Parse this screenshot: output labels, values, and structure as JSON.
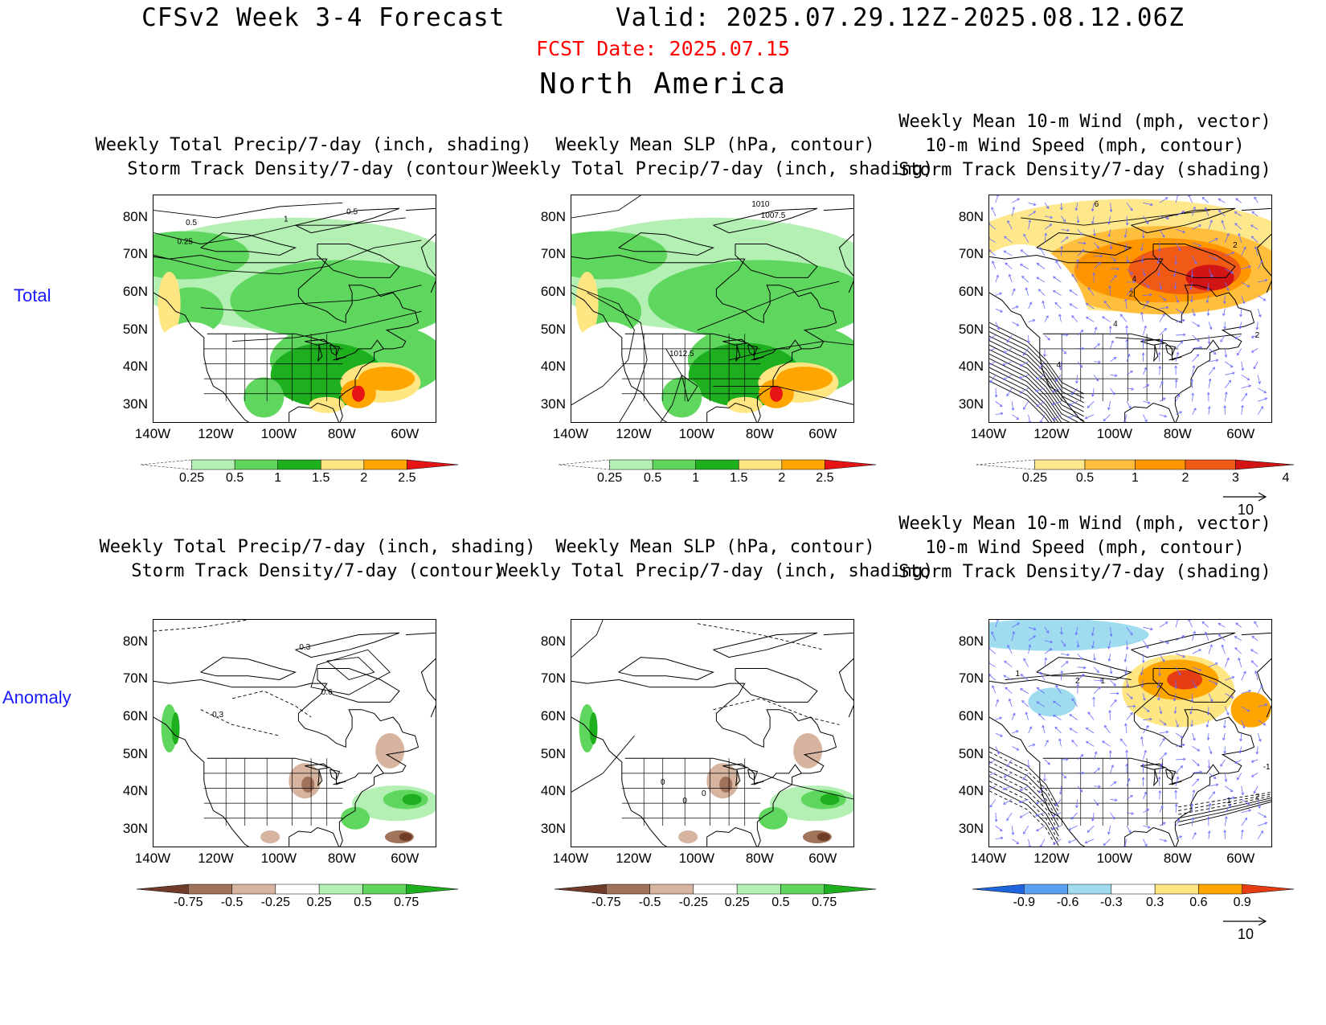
{
  "header": {
    "title": "CFSv2 Week 3-4 Forecast       Valid: 2025.07.29.12Z-2025.08.12.06Z",
    "fcst_date": "FCST Date: 2025.07.15",
    "region": "North America"
  },
  "row_labels": [
    "Total",
    "Anomaly"
  ],
  "panel_titles": {
    "precip_storm": [
      "Weekly Total Precip/7-day (inch, shading)",
      "Storm Track Density/7-day (contour)"
    ],
    "slp_precip": [
      "Weekly Mean SLP (hPa, contour)",
      "Weekly Total Precip/7-day (inch, shading)"
    ],
    "wind_storm": [
      "Weekly Mean 10-m Wind (mph, vector)",
      "10-m Wind Speed (mph, contour)",
      "Storm Track Density/7-day (shading)"
    ]
  },
  "axes": {
    "lat_labels": [
      "80N",
      "70N",
      "60N",
      "50N",
      "40N",
      "30N"
    ],
    "lon_labels": [
      "140W",
      "120W",
      "100W",
      "80W",
      "60W"
    ]
  },
  "colorbars": {
    "precip_total": {
      "ticks": [
        "0.25",
        "0.5",
        "1",
        "1.5",
        "2",
        "2.5"
      ],
      "colors": [
        "#ffffff",
        "#b4f0b4",
        "#5fd75f",
        "#1eaf1e",
        "#ffe682",
        "#ffa500",
        "#e61414"
      ]
    },
    "storm_total": {
      "ticks": [
        "0.25",
        "0.5",
        "1",
        "2",
        "3",
        "4"
      ],
      "colors": [
        "#ffffff",
        "#ffe88c",
        "#ffbe3c",
        "#ff9600",
        "#f05a14",
        "#d21414"
      ]
    },
    "precip_anom": {
      "ticks": [
        "-0.75",
        "-0.5",
        "-0.25",
        "0.25",
        "0.5",
        "0.75"
      ],
      "colors": [
        "#6e3c28",
        "#a0735a",
        "#d7b4a0",
        "#ffffff",
        "#b4f0b4",
        "#5fd75f",
        "#1eaf1e"
      ]
    },
    "storm_anom": {
      "ticks": [
        "-0.9",
        "-0.6",
        "-0.3",
        "0.3",
        "0.6",
        "0.9"
      ],
      "colors": [
        "#1e64dc",
        "#5aa0f0",
        "#a0dcf0",
        "#ffffff",
        "#ffe682",
        "#ffa500",
        "#e63c14"
      ]
    }
  },
  "contour_labels": {
    "total_precip": [
      "1",
      "0.5",
      "0.5",
      "0.25"
    ],
    "total_slp": [
      "1010",
      "1007.5",
      "1012.5"
    ],
    "total_wind": [
      "6",
      "4",
      "2",
      "2",
      "4",
      "2",
      "4"
    ],
    "anom_precip": [
      "0.3",
      "0.6",
      "-0.3"
    ],
    "anom_slp": [
      "0",
      "0",
      "0"
    ],
    "anom_wind": [
      "1",
      "2",
      "1",
      "1",
      "-1",
      "2"
    ]
  },
  "vector_reference": "10"
}
